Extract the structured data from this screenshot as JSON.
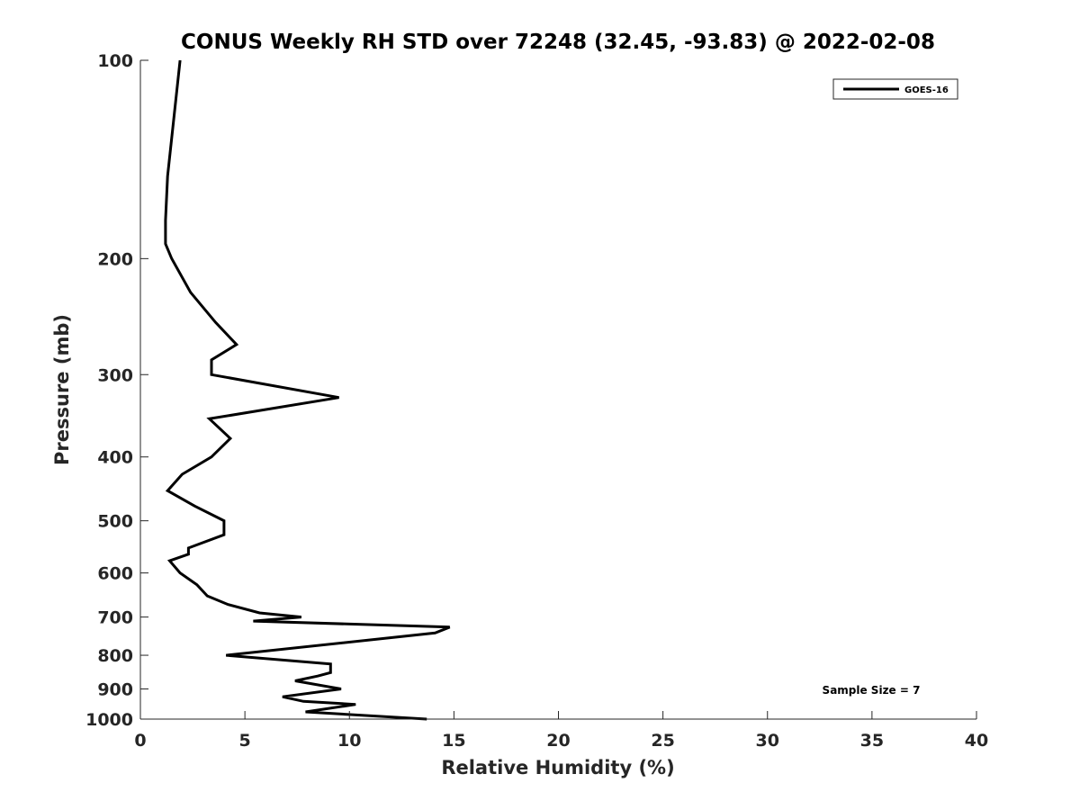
{
  "chart_data": {
    "type": "line",
    "title": "CONUS Weekly RH STD over 72248 (32.45, -93.83) @ 2022-02-08",
    "xlabel": "Relative Humidity (%)",
    "ylabel": "Pressure (mb)",
    "xlim": [
      0,
      40
    ],
    "ylim": [
      100,
      1000
    ],
    "y_scale": "log",
    "y_reversed": true,
    "grid": false,
    "legend_position": "top-right",
    "x_ticks": [
      "0",
      "5",
      "10",
      "15",
      "20",
      "25",
      "30",
      "35",
      "40"
    ],
    "y_ticks": [
      "100",
      "200",
      "300",
      "400",
      "500",
      "600",
      "700",
      "800",
      "900",
      "1000"
    ],
    "annotation": "Sample Size = 7",
    "series": [
      {
        "name": "GOES-16",
        "color": "#000000",
        "points": [
          [
            1.9,
            100
          ],
          [
            1.3,
            150
          ],
          [
            1.2,
            175
          ],
          [
            1.2,
            190
          ],
          [
            1.5,
            200
          ],
          [
            2.4,
            225
          ],
          [
            3.6,
            250
          ],
          [
            4.6,
            270
          ],
          [
            3.4,
            285
          ],
          [
            3.4,
            300
          ],
          [
            9.5,
            325
          ],
          [
            3.3,
            350
          ],
          [
            4.3,
            375
          ],
          [
            3.4,
            400
          ],
          [
            2.0,
            425
          ],
          [
            1.3,
            450
          ],
          [
            2.6,
            475
          ],
          [
            4.0,
            500
          ],
          [
            4.0,
            525
          ],
          [
            2.3,
            550
          ],
          [
            2.3,
            562
          ],
          [
            1.4,
            575
          ],
          [
            1.9,
            600
          ],
          [
            2.7,
            625
          ],
          [
            3.2,
            650
          ],
          [
            4.2,
            670
          ],
          [
            5.7,
            690
          ],
          [
            7.7,
            700
          ],
          [
            5.4,
            710
          ],
          [
            14.8,
            725
          ],
          [
            14.1,
            740
          ],
          [
            4.1,
            800
          ],
          [
            9.1,
            825
          ],
          [
            9.1,
            850
          ],
          [
            8.5,
            860
          ],
          [
            7.4,
            875
          ],
          [
            9.6,
            900
          ],
          [
            6.8,
            925
          ],
          [
            7.8,
            940
          ],
          [
            10.3,
            950
          ],
          [
            7.9,
            975
          ],
          [
            13.7,
            1000
          ]
        ]
      }
    ]
  }
}
